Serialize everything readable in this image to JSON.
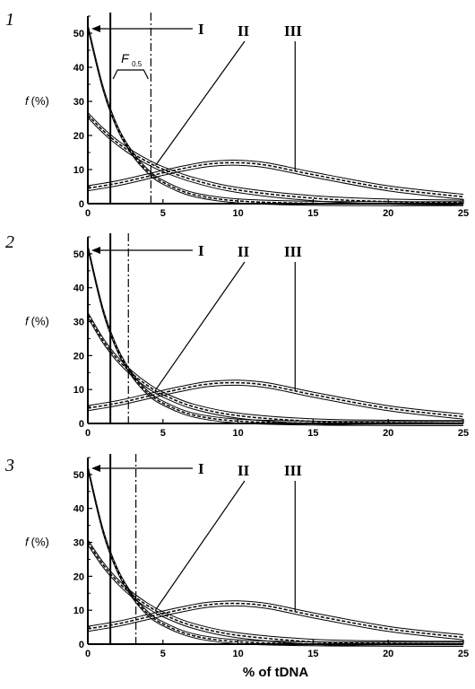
{
  "figure": {
    "xlabel": "% of tDNA",
    "ylabel": "f (%)",
    "ylabel_f": "f",
    "ylabel_unit": "(%)",
    "annotation_main": "F",
    "annotation_sub": "0.5",
    "curve_labels": [
      "I",
      "II",
      "III"
    ]
  },
  "chart_data": [
    {
      "type": "line",
      "panel_label": "1",
      "xlim": [
        0,
        25
      ],
      "ylim": [
        0,
        55
      ],
      "xticks": [
        0,
        5,
        10,
        15,
        20,
        25
      ],
      "yticks": [
        0,
        10,
        20,
        30,
        40,
        50
      ],
      "solid_vline_x": 1.5,
      "dashdot_vline_x": 4.2,
      "series": [
        {
          "x": [
            0,
            1,
            2,
            3,
            4,
            5,
            7,
            10,
            15,
            20,
            25
          ],
          "y": [
            52,
            34,
            22,
            14.5,
            9.5,
            6.3,
            2.7,
            0.8,
            0.1,
            0,
            0
          ]
        },
        {
          "x": [
            0,
            1,
            2,
            3,
            4,
            5,
            7,
            10,
            15,
            20,
            25
          ],
          "y": [
            26,
            21.5,
            17.8,
            14.7,
            12.2,
            10.1,
            7.0,
            4.0,
            1.6,
            0.6,
            0.3
          ]
        },
        {
          "x": [
            0,
            2,
            4,
            6,
            8,
            10,
            12,
            15,
            20,
            25
          ],
          "y": [
            4.5,
            6,
            8,
            10,
            11.6,
            12,
            11.2,
            8.5,
            4.5,
            2
          ]
        }
      ]
    },
    {
      "type": "line",
      "panel_label": "2",
      "xlim": [
        0,
        25
      ],
      "ylim": [
        0,
        55
      ],
      "xticks": [
        0,
        5,
        10,
        15,
        20,
        25
      ],
      "yticks": [
        0,
        10,
        20,
        30,
        40,
        50
      ],
      "solid_vline_x": 1.5,
      "dashdot_vline_x": 2.7,
      "series": [
        {
          "x": [
            0,
            1,
            2,
            3,
            4,
            5,
            7,
            10,
            15,
            20,
            25
          ],
          "y": [
            52,
            33.5,
            21.5,
            14,
            9,
            6,
            2.5,
            0.7,
            0.1,
            0,
            0
          ]
        },
        {
          "x": [
            0,
            1,
            2,
            3,
            4,
            5,
            7,
            10,
            15,
            20,
            25
          ],
          "y": [
            32,
            24.5,
            18.8,
            14.5,
            11.1,
            8.5,
            5.0,
            2.3,
            0.6,
            0.2,
            0.1
          ]
        },
        {
          "x": [
            0,
            2,
            4,
            6,
            8,
            10,
            12,
            15,
            20,
            25
          ],
          "y": [
            4.5,
            6,
            8,
            10,
            11.6,
            12,
            11.2,
            8.5,
            4.5,
            2
          ]
        }
      ]
    },
    {
      "type": "line",
      "panel_label": "3",
      "xlim": [
        0,
        25
      ],
      "ylim": [
        0,
        55
      ],
      "xticks": [
        0,
        5,
        10,
        15,
        20,
        25
      ],
      "yticks": [
        0,
        10,
        20,
        30,
        40,
        50
      ],
      "solid_vline_x": 1.5,
      "dashdot_vline_x": 3.2,
      "series": [
        {
          "x": [
            0,
            1,
            2,
            3,
            4,
            5,
            7,
            10,
            15,
            20,
            25
          ],
          "y": [
            52,
            33.5,
            21.5,
            14,
            9,
            6,
            2.5,
            0.7,
            0.1,
            0,
            0
          ]
        },
        {
          "x": [
            0,
            1,
            2,
            3,
            4,
            5,
            7,
            10,
            15,
            20,
            25
          ],
          "y": [
            30,
            23.5,
            18.4,
            14.4,
            11.3,
            8.8,
            5.4,
            2.6,
            0.7,
            0.2,
            0.1
          ]
        },
        {
          "x": [
            0,
            2,
            4,
            6,
            8,
            10,
            12,
            15,
            20,
            25
          ],
          "y": [
            4.5,
            6,
            8,
            10,
            11.6,
            12,
            11.2,
            8.5,
            4.5,
            2
          ]
        }
      ]
    }
  ]
}
